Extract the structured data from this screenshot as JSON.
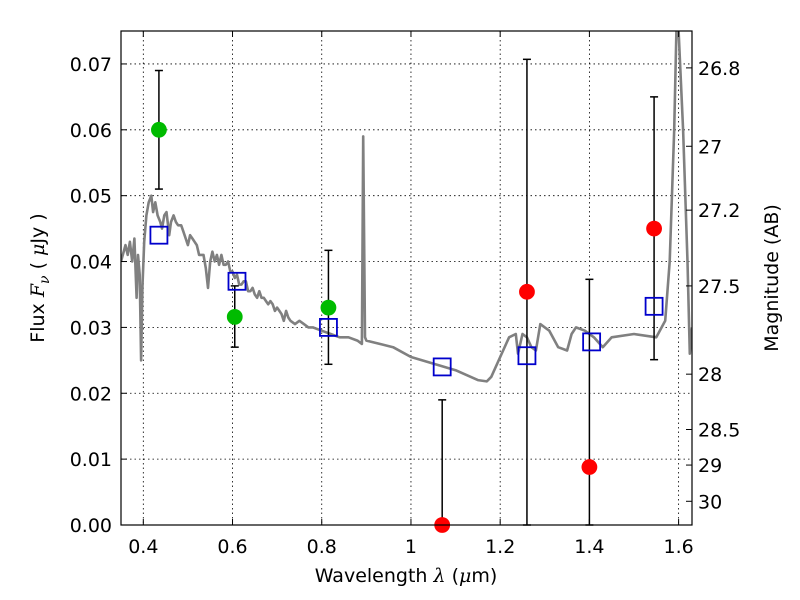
{
  "chart_data": {
    "type": "scatter",
    "xlabel": "Wavelength  λ (μm)",
    "ylabel_left": "Flux  F_ν  ( μJy )",
    "ylabel_right": "Magnitude (AB)",
    "xlim": [
      0.35,
      1.63
    ],
    "ylim": [
      0.0,
      0.075
    ],
    "grid": true,
    "x_ticks": [
      0.4,
      0.6,
      0.8,
      1.0,
      1.2,
      1.4,
      1.6
    ],
    "x_tick_labels": [
      "0.4",
      "0.6",
      "0.8",
      "1",
      "1.2",
      "1.4",
      "1.6"
    ],
    "y_ticks": [
      0.0,
      0.01,
      0.02,
      0.03,
      0.04,
      0.05,
      0.06,
      0.07
    ],
    "y_tick_labels": [
      "0.00",
      "0.01",
      "0.02",
      "0.03",
      "0.04",
      "0.05",
      "0.06",
      "0.07"
    ],
    "right_ticks": [
      {
        "label": "26.8",
        "flux": 0.0694
      },
      {
        "label": "27",
        "flux": 0.0575
      },
      {
        "label": "27.2",
        "flux": 0.0478
      },
      {
        "label": "27.5",
        "flux": 0.0363
      },
      {
        "label": "28",
        "flux": 0.0229
      },
      {
        "label": "28.5",
        "flux": 0.0145
      },
      {
        "label": "29",
        "flux": 0.0091
      },
      {
        "label": "30",
        "flux": 0.0036
      }
    ],
    "series": [
      {
        "kind": "model_sed",
        "color": "#808080",
        "points": [
          [
            0.35,
            0.04
          ],
          [
            0.36,
            0.0425
          ],
          [
            0.365,
            0.041
          ],
          [
            0.37,
            0.043
          ],
          [
            0.375,
            0.04
          ],
          [
            0.38,
            0.0435
          ],
          [
            0.385,
            0.0345
          ],
          [
            0.388,
            0.041
          ],
          [
            0.392,
            0.038
          ],
          [
            0.395,
            0.025
          ],
          [
            0.398,
            0.036
          ],
          [
            0.402,
            0.043
          ],
          [
            0.407,
            0.047
          ],
          [
            0.412,
            0.049
          ],
          [
            0.418,
            0.05
          ],
          [
            0.422,
            0.0475
          ],
          [
            0.427,
            0.049
          ],
          [
            0.432,
            0.047
          ],
          [
            0.438,
            0.046
          ],
          [
            0.442,
            0.045
          ],
          [
            0.447,
            0.047
          ],
          [
            0.452,
            0.0475
          ],
          [
            0.458,
            0.044
          ],
          [
            0.462,
            0.046
          ],
          [
            0.468,
            0.047
          ],
          [
            0.473,
            0.046
          ],
          [
            0.478,
            0.0455
          ],
          [
            0.485,
            0.0455
          ],
          [
            0.49,
            0.0445
          ],
          [
            0.495,
            0.0435
          ],
          [
            0.5,
            0.0425
          ],
          [
            0.505,
            0.044
          ],
          [
            0.51,
            0.0435
          ],
          [
            0.515,
            0.043
          ],
          [
            0.52,
            0.0425
          ],
          [
            0.525,
            0.041
          ],
          [
            0.53,
            0.041
          ],
          [
            0.535,
            0.041
          ],
          [
            0.54,
            0.039
          ],
          [
            0.545,
            0.036
          ],
          [
            0.55,
            0.04
          ],
          [
            0.555,
            0.0415
          ],
          [
            0.56,
            0.04
          ],
          [
            0.565,
            0.041
          ],
          [
            0.57,
            0.0395
          ],
          [
            0.575,
            0.041
          ],
          [
            0.58,
            0.0395
          ],
          [
            0.585,
            0.0395
          ],
          [
            0.59,
            0.04
          ],
          [
            0.595,
            0.0385
          ],
          [
            0.6,
            0.0385
          ],
          [
            0.605,
            0.0375
          ],
          [
            0.61,
            0.038
          ],
          [
            0.615,
            0.0365
          ],
          [
            0.62,
            0.0365
          ],
          [
            0.625,
            0.037
          ],
          [
            0.63,
            0.037
          ],
          [
            0.635,
            0.0355
          ],
          [
            0.64,
            0.0355
          ],
          [
            0.645,
            0.036
          ],
          [
            0.65,
            0.035
          ],
          [
            0.655,
            0.0345
          ],
          [
            0.66,
            0.0355
          ],
          [
            0.665,
            0.0345
          ],
          [
            0.67,
            0.0345
          ],
          [
            0.675,
            0.034
          ],
          [
            0.68,
            0.0335
          ],
          [
            0.685,
            0.034
          ],
          [
            0.69,
            0.0335
          ],
          [
            0.695,
            0.0325
          ],
          [
            0.7,
            0.033
          ],
          [
            0.705,
            0.0325
          ],
          [
            0.71,
            0.032
          ],
          [
            0.715,
            0.031
          ],
          [
            0.72,
            0.0325
          ],
          [
            0.725,
            0.0315
          ],
          [
            0.73,
            0.031
          ],
          [
            0.74,
            0.0305
          ],
          [
            0.75,
            0.031
          ],
          [
            0.76,
            0.0305
          ],
          [
            0.77,
            0.03
          ],
          [
            0.78,
            0.03
          ],
          [
            0.8,
            0.0295
          ],
          [
            0.82,
            0.029
          ],
          [
            0.84,
            0.0285
          ],
          [
            0.86,
            0.0285
          ],
          [
            0.88,
            0.028
          ],
          [
            0.89,
            0.0275
          ],
          [
            0.893,
            0.059
          ],
          [
            0.897,
            0.0285
          ],
          [
            0.9,
            0.028
          ],
          [
            0.93,
            0.0275
          ],
          [
            0.96,
            0.027
          ],
          [
            1.0,
            0.0255
          ],
          [
            1.05,
            0.0245
          ],
          [
            1.1,
            0.0235
          ],
          [
            1.15,
            0.022
          ],
          [
            1.17,
            0.0218
          ],
          [
            1.18,
            0.0225
          ],
          [
            1.2,
            0.0255
          ],
          [
            1.22,
            0.0285
          ],
          [
            1.235,
            0.029
          ],
          [
            1.24,
            0.026
          ],
          [
            1.25,
            0.029
          ],
          [
            1.26,
            0.0285
          ],
          [
            1.27,
            0.027
          ],
          [
            1.28,
            0.0265
          ],
          [
            1.285,
            0.0285
          ],
          [
            1.29,
            0.0305
          ],
          [
            1.3,
            0.03
          ],
          [
            1.31,
            0.0295
          ],
          [
            1.33,
            0.027
          ],
          [
            1.35,
            0.0265
          ],
          [
            1.36,
            0.029
          ],
          [
            1.37,
            0.03
          ],
          [
            1.39,
            0.0295
          ],
          [
            1.41,
            0.0285
          ],
          [
            1.43,
            0.027
          ],
          [
            1.45,
            0.0285
          ],
          [
            1.5,
            0.029
          ],
          [
            1.55,
            0.0285
          ],
          [
            1.57,
            0.031
          ],
          [
            1.58,
            0.04
          ],
          [
            1.59,
            0.06
          ],
          [
            1.595,
            0.075
          ],
          [
            1.6,
            0.075
          ],
          [
            1.61,
            0.06
          ],
          [
            1.62,
            0.04
          ],
          [
            1.625,
            0.026
          ],
          [
            1.63,
            0.03
          ]
        ]
      },
      {
        "kind": "model_bandpass",
        "marker": "open-square",
        "color": "#0000cc",
        "points": [
          [
            0.435,
            0.044
          ],
          [
            0.61,
            0.037
          ],
          [
            0.815,
            0.03
          ],
          [
            1.07,
            0.024
          ],
          [
            1.26,
            0.0257
          ],
          [
            1.405,
            0.0278
          ],
          [
            1.545,
            0.0332
          ]
        ]
      },
      {
        "kind": "detection",
        "marker": "filled-circle",
        "color": "#00bb00",
        "points": [
          {
            "x": 0.435,
            "y": 0.06,
            "err_lo": 0.051,
            "err_hi": 0.069
          },
          {
            "x": 0.605,
            "y": 0.0316,
            "err_lo": 0.027,
            "err_hi": 0.0363
          },
          {
            "x": 0.815,
            "y": 0.033,
            "err_lo": 0.0244,
            "err_hi": 0.0417
          }
        ]
      },
      {
        "kind": "low_snr",
        "marker": "filled-circle",
        "color": "#ff0000",
        "points": [
          {
            "x": 1.07,
            "y": 0.0,
            "err_lo": 0.0,
            "err_hi": 0.019
          },
          {
            "x": 1.26,
            "y": 0.0354,
            "err_lo": 0.0,
            "err_hi": 0.0707
          },
          {
            "x": 1.4,
            "y": 0.0088,
            "err_lo": 0.0,
            "err_hi": 0.0373
          },
          {
            "x": 1.545,
            "y": 0.045,
            "err_lo": 0.0251,
            "err_hi": 0.065
          }
        ]
      }
    ]
  }
}
